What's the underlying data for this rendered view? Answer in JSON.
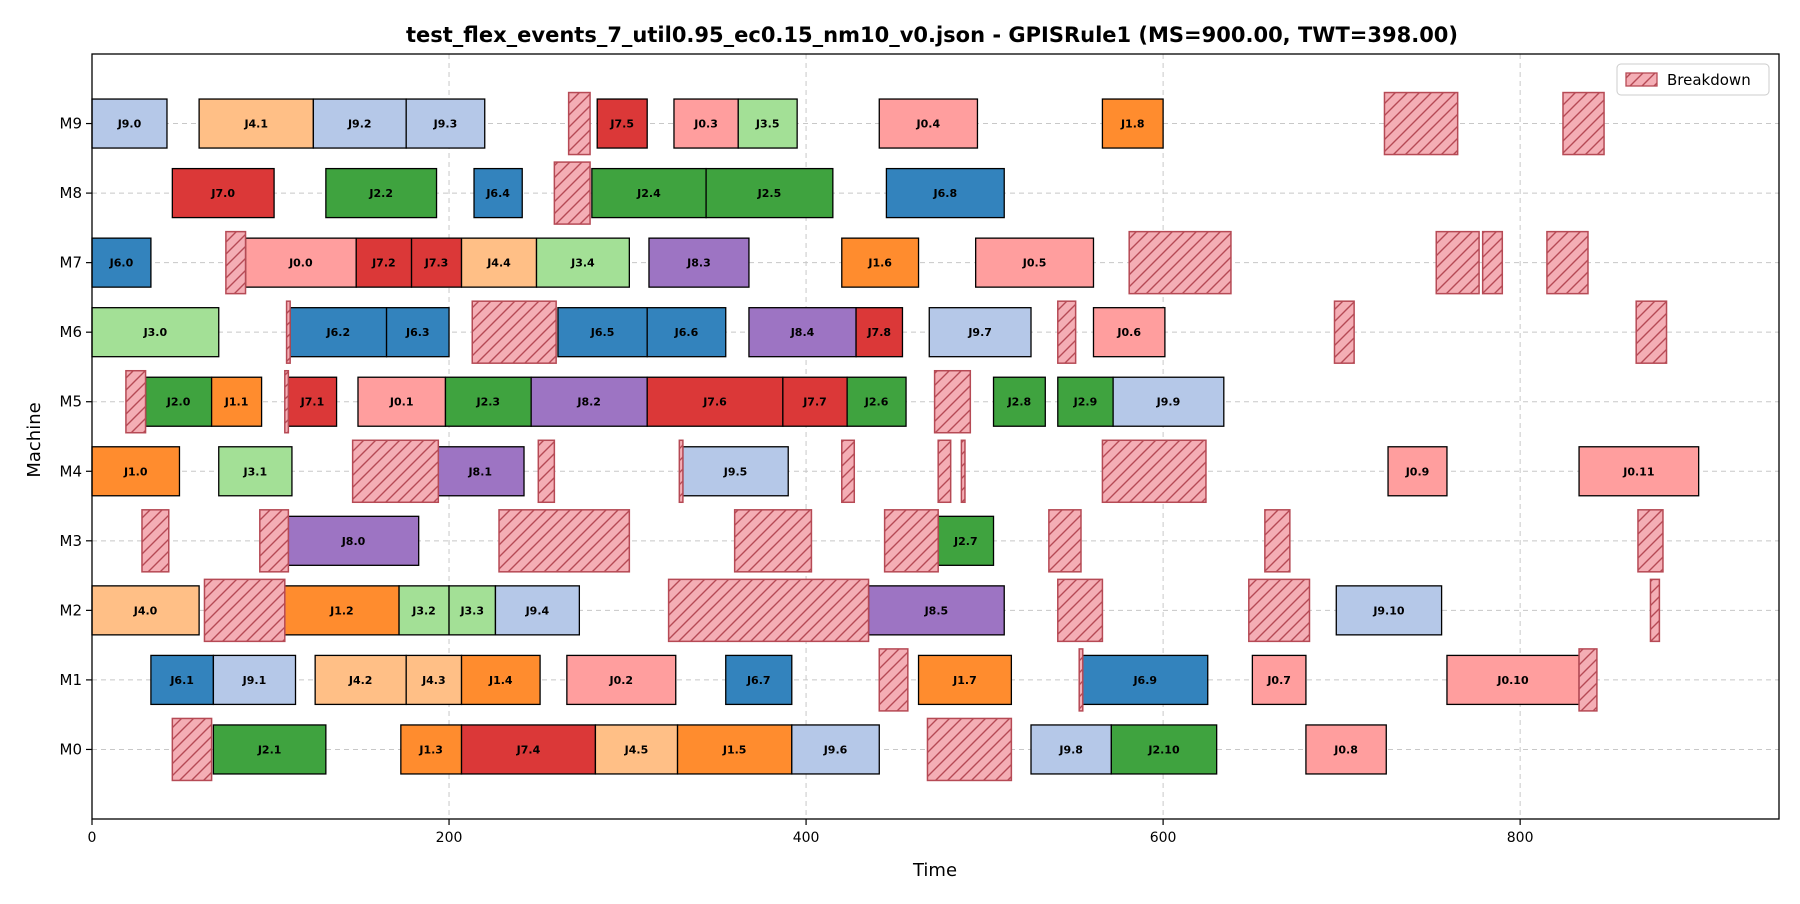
{
  "chart_data": {
    "type": "gantt",
    "title": "test_flex_events_7_util0.95_ec0.15_nm10_v0.json - GPISRule1 (MS=900.00, TWT=398.00)",
    "xlabel": "Time",
    "ylabel": "Machine",
    "xlim": [
      0,
      945
    ],
    "xticks": [
      0,
      200,
      400,
      600,
      800
    ],
    "machines": [
      "M0",
      "M1",
      "M2",
      "M3",
      "M4",
      "M5",
      "M6",
      "M7",
      "M8",
      "M9"
    ],
    "grid": true,
    "legend": {
      "position": "top-right",
      "entries": [
        "Breakdown"
      ]
    },
    "job_colors": {
      "0": "#ff9e9e",
      "1": "#ff8c2e",
      "2": "#3fa33f",
      "3": "#a3e096",
      "4": "#ffbf86",
      "6": "#3383bd",
      "7": "#db3838",
      "8": "#9d74c3",
      "9": "#b5c8e8"
    },
    "breakdown_color": "#f4aeb5",
    "breakdown_edge": "#b64a55",
    "ops": [
      {
        "m": "M9",
        "job": 9,
        "label": "J9.0",
        "start": 0,
        "end": 42
      },
      {
        "m": "M9",
        "job": 4,
        "label": "J4.1",
        "start": 60,
        "end": 124
      },
      {
        "m": "M9",
        "job": 9,
        "label": "J9.2",
        "start": 124,
        "end": 176
      },
      {
        "m": "M9",
        "job": 9,
        "label": "J9.3",
        "start": 176,
        "end": 220
      },
      {
        "m": "M9",
        "job": 7,
        "label": "J7.5",
        "start": 283,
        "end": 311
      },
      {
        "m": "M9",
        "job": 0,
        "label": "J0.3",
        "start": 326,
        "end": 362
      },
      {
        "m": "M9",
        "job": 3,
        "label": "J3.5",
        "start": 362,
        "end": 395
      },
      {
        "m": "M9",
        "job": 0,
        "label": "J0.4",
        "start": 441,
        "end": 496
      },
      {
        "m": "M9",
        "job": 1,
        "label": "J1.8",
        "start": 566,
        "end": 600
      },
      {
        "m": "M8",
        "job": 7,
        "label": "J7.0",
        "start": 45,
        "end": 102
      },
      {
        "m": "M8",
        "job": 2,
        "label": "J2.2",
        "start": 131,
        "end": 193
      },
      {
        "m": "M8",
        "job": 6,
        "label": "J6.4",
        "start": 214,
        "end": 241
      },
      {
        "m": "M8",
        "job": 2,
        "label": "J2.4",
        "start": 280,
        "end": 344
      },
      {
        "m": "M8",
        "job": 2,
        "label": "J2.5",
        "start": 344,
        "end": 415
      },
      {
        "m": "M8",
        "job": 6,
        "label": "J6.8",
        "start": 445,
        "end": 511
      },
      {
        "m": "M7",
        "job": 6,
        "label": "J6.0",
        "start": 0,
        "end": 33
      },
      {
        "m": "M7",
        "job": 0,
        "label": "J0.0",
        "start": 86,
        "end": 148
      },
      {
        "m": "M7",
        "job": 7,
        "label": "J7.2",
        "start": 148,
        "end": 179
      },
      {
        "m": "M7",
        "job": 7,
        "label": "J7.3",
        "start": 179,
        "end": 207
      },
      {
        "m": "M7",
        "job": 4,
        "label": "J4.4",
        "start": 207,
        "end": 249
      },
      {
        "m": "M7",
        "job": 3,
        "label": "J3.4",
        "start": 249,
        "end": 301
      },
      {
        "m": "M7",
        "job": 8,
        "label": "J8.3",
        "start": 312,
        "end": 368
      },
      {
        "m": "M7",
        "job": 1,
        "label": "J1.6",
        "start": 420,
        "end": 463
      },
      {
        "m": "M7",
        "job": 0,
        "label": "J0.5",
        "start": 495,
        "end": 561
      },
      {
        "m": "M6",
        "job": 3,
        "label": "J3.0",
        "start": 0,
        "end": 71
      },
      {
        "m": "M6",
        "job": 6,
        "label": "J6.2",
        "start": 111,
        "end": 165
      },
      {
        "m": "M6",
        "job": 6,
        "label": "J6.3",
        "start": 165,
        "end": 200
      },
      {
        "m": "M6",
        "job": 6,
        "label": "J6.5",
        "start": 261,
        "end": 311
      },
      {
        "m": "M6",
        "job": 6,
        "label": "J6.6",
        "start": 311,
        "end": 355
      },
      {
        "m": "M6",
        "job": 8,
        "label": "J8.4",
        "start": 368,
        "end": 428
      },
      {
        "m": "M6",
        "job": 7,
        "label": "J7.8",
        "start": 428,
        "end": 454
      },
      {
        "m": "M6",
        "job": 9,
        "label": "J9.7",
        "start": 469,
        "end": 526
      },
      {
        "m": "M6",
        "job": 0,
        "label": "J0.6",
        "start": 561,
        "end": 601
      },
      {
        "m": "M5",
        "job": 2,
        "label": "J2.0",
        "start": 30,
        "end": 67
      },
      {
        "m": "M5",
        "job": 1,
        "label": "J1.1",
        "start": 67,
        "end": 95
      },
      {
        "m": "M5",
        "job": 7,
        "label": "J7.1",
        "start": 110,
        "end": 137
      },
      {
        "m": "M5",
        "job": 0,
        "label": "J0.1",
        "start": 149,
        "end": 198
      },
      {
        "m": "M5",
        "job": 2,
        "label": "J2.3",
        "start": 198,
        "end": 246
      },
      {
        "m": "M5",
        "job": 8,
        "label": "J8.2",
        "start": 246,
        "end": 311
      },
      {
        "m": "M5",
        "job": 7,
        "label": "J7.6",
        "start": 311,
        "end": 387
      },
      {
        "m": "M5",
        "job": 7,
        "label": "J7.7",
        "start": 387,
        "end": 423
      },
      {
        "m": "M5",
        "job": 2,
        "label": "J2.6",
        "start": 423,
        "end": 456
      },
      {
        "m": "M5",
        "job": 2,
        "label": "J2.8",
        "start": 505,
        "end": 534
      },
      {
        "m": "M5",
        "job": 2,
        "label": "J2.9",
        "start": 541,
        "end": 572
      },
      {
        "m": "M5",
        "job": 9,
        "label": "J9.9",
        "start": 572,
        "end": 634
      },
      {
        "m": "M4",
        "job": 1,
        "label": "J1.0",
        "start": 0,
        "end": 49
      },
      {
        "m": "M4",
        "job": 3,
        "label": "J3.1",
        "start": 71,
        "end": 112
      },
      {
        "m": "M4",
        "job": 8,
        "label": "J8.1",
        "start": 193,
        "end": 242
      },
      {
        "m": "M4",
        "job": 9,
        "label": "J9.5",
        "start": 331,
        "end": 390
      },
      {
        "m": "M4",
        "job": 0,
        "label": "J0.9",
        "start": 726,
        "end": 759
      },
      {
        "m": "M4",
        "job": 0,
        "label": "J0.11",
        "start": 833,
        "end": 900
      },
      {
        "m": "M3",
        "job": 8,
        "label": "J8.0",
        "start": 110,
        "end": 183
      },
      {
        "m": "M3",
        "job": 2,
        "label": "J2.7",
        "start": 474,
        "end": 505
      },
      {
        "m": "M2",
        "job": 4,
        "label": "J4.0",
        "start": 0,
        "end": 60
      },
      {
        "m": "M2",
        "job": 1,
        "label": "J1.2",
        "start": 108,
        "end": 172
      },
      {
        "m": "M2",
        "job": 3,
        "label": "J3.2",
        "start": 172,
        "end": 200
      },
      {
        "m": "M2",
        "job": 3,
        "label": "J3.3",
        "start": 200,
        "end": 226
      },
      {
        "m": "M2",
        "job": 9,
        "label": "J9.4",
        "start": 226,
        "end": 273
      },
      {
        "m": "M2",
        "job": 8,
        "label": "J8.5",
        "start": 435,
        "end": 511
      },
      {
        "m": "M2",
        "job": 9,
        "label": "J9.10",
        "start": 697,
        "end": 756
      },
      {
        "m": "M1",
        "job": 6,
        "label": "J6.1",
        "start": 33,
        "end": 68
      },
      {
        "m": "M1",
        "job": 9,
        "label": "J9.1",
        "start": 68,
        "end": 114
      },
      {
        "m": "M1",
        "job": 4,
        "label": "J4.2",
        "start": 125,
        "end": 176
      },
      {
        "m": "M1",
        "job": 4,
        "label": "J4.3",
        "start": 176,
        "end": 207
      },
      {
        "m": "M1",
        "job": 1,
        "label": "J1.4",
        "start": 207,
        "end": 251
      },
      {
        "m": "M1",
        "job": 0,
        "label": "J0.2",
        "start": 266,
        "end": 327
      },
      {
        "m": "M1",
        "job": 6,
        "label": "J6.7",
        "start": 355,
        "end": 392
      },
      {
        "m": "M1",
        "job": 1,
        "label": "J1.7",
        "start": 463,
        "end": 515
      },
      {
        "m": "M1",
        "job": 6,
        "label": "J6.9",
        "start": 555,
        "end": 625
      },
      {
        "m": "M1",
        "job": 0,
        "label": "J0.7",
        "start": 650,
        "end": 680
      },
      {
        "m": "M1",
        "job": 0,
        "label": "J0.10",
        "start": 759,
        "end": 833
      },
      {
        "m": "M0",
        "job": 2,
        "label": "J2.1",
        "start": 68,
        "end": 131
      },
      {
        "m": "M0",
        "job": 1,
        "label": "J1.3",
        "start": 173,
        "end": 207
      },
      {
        "m": "M0",
        "job": 7,
        "label": "J7.4",
        "start": 207,
        "end": 282
      },
      {
        "m": "M0",
        "job": 4,
        "label": "J4.5",
        "start": 282,
        "end": 328
      },
      {
        "m": "M0",
        "job": 1,
        "label": "J1.5",
        "start": 328,
        "end": 392
      },
      {
        "m": "M0",
        "job": 9,
        "label": "J9.6",
        "start": 392,
        "end": 441
      },
      {
        "m": "M0",
        "job": 9,
        "label": "J9.8",
        "start": 526,
        "end": 571
      },
      {
        "m": "M0",
        "job": 2,
        "label": "J2.10",
        "start": 571,
        "end": 630
      },
      {
        "m": "M0",
        "job": 0,
        "label": "J0.8",
        "start": 680,
        "end": 725
      }
    ],
    "breakdowns": [
      {
        "m": "M9",
        "start": 267,
        "end": 279
      },
      {
        "m": "M9",
        "start": 724,
        "end": 765
      },
      {
        "m": "M9",
        "start": 824,
        "end": 847
      },
      {
        "m": "M8",
        "start": 259,
        "end": 279
      },
      {
        "m": "M7",
        "start": 75,
        "end": 86
      },
      {
        "m": "M7",
        "start": 581,
        "end": 638
      },
      {
        "m": "M7",
        "start": 753,
        "end": 777
      },
      {
        "m": "M7",
        "start": 779,
        "end": 790
      },
      {
        "m": "M7",
        "start": 815,
        "end": 838
      },
      {
        "m": "M6",
        "start": 109,
        "end": 111
      },
      {
        "m": "M6",
        "start": 213,
        "end": 260
      },
      {
        "m": "M6",
        "start": 541,
        "end": 551
      },
      {
        "m": "M6",
        "start": 696,
        "end": 707
      },
      {
        "m": "M6",
        "start": 865,
        "end": 882
      },
      {
        "m": "M5",
        "start": 19,
        "end": 30
      },
      {
        "m": "M5",
        "start": 108,
        "end": 110
      },
      {
        "m": "M5",
        "start": 472,
        "end": 492
      },
      {
        "m": "M4",
        "start": 146,
        "end": 194
      },
      {
        "m": "M4",
        "start": 250,
        "end": 259
      },
      {
        "m": "M4",
        "start": 329,
        "end": 331
      },
      {
        "m": "M4",
        "start": 420,
        "end": 427
      },
      {
        "m": "M4",
        "start": 474,
        "end": 481
      },
      {
        "m": "M4",
        "start": 487,
        "end": 489
      },
      {
        "m": "M4",
        "start": 566,
        "end": 624
      },
      {
        "m": "M3",
        "start": 28,
        "end": 43
      },
      {
        "m": "M3",
        "start": 94,
        "end": 110
      },
      {
        "m": "M3",
        "start": 228,
        "end": 301
      },
      {
        "m": "M3",
        "start": 360,
        "end": 403
      },
      {
        "m": "M3",
        "start": 444,
        "end": 474
      },
      {
        "m": "M3",
        "start": 536,
        "end": 554
      },
      {
        "m": "M3",
        "start": 657,
        "end": 671
      },
      {
        "m": "M3",
        "start": 866,
        "end": 880
      },
      {
        "m": "M2",
        "start": 63,
        "end": 108
      },
      {
        "m": "M2",
        "start": 323,
        "end": 435
      },
      {
        "m": "M2",
        "start": 541,
        "end": 566
      },
      {
        "m": "M2",
        "start": 648,
        "end": 682
      },
      {
        "m": "M2",
        "start": 873,
        "end": 878
      },
      {
        "m": "M1",
        "start": 441,
        "end": 457
      },
      {
        "m": "M1",
        "start": 553,
        "end": 555
      },
      {
        "m": "M1",
        "start": 833,
        "end": 843
      },
      {
        "m": "M0",
        "start": 45,
        "end": 67
      },
      {
        "m": "M0",
        "start": 468,
        "end": 515
      }
    ]
  }
}
